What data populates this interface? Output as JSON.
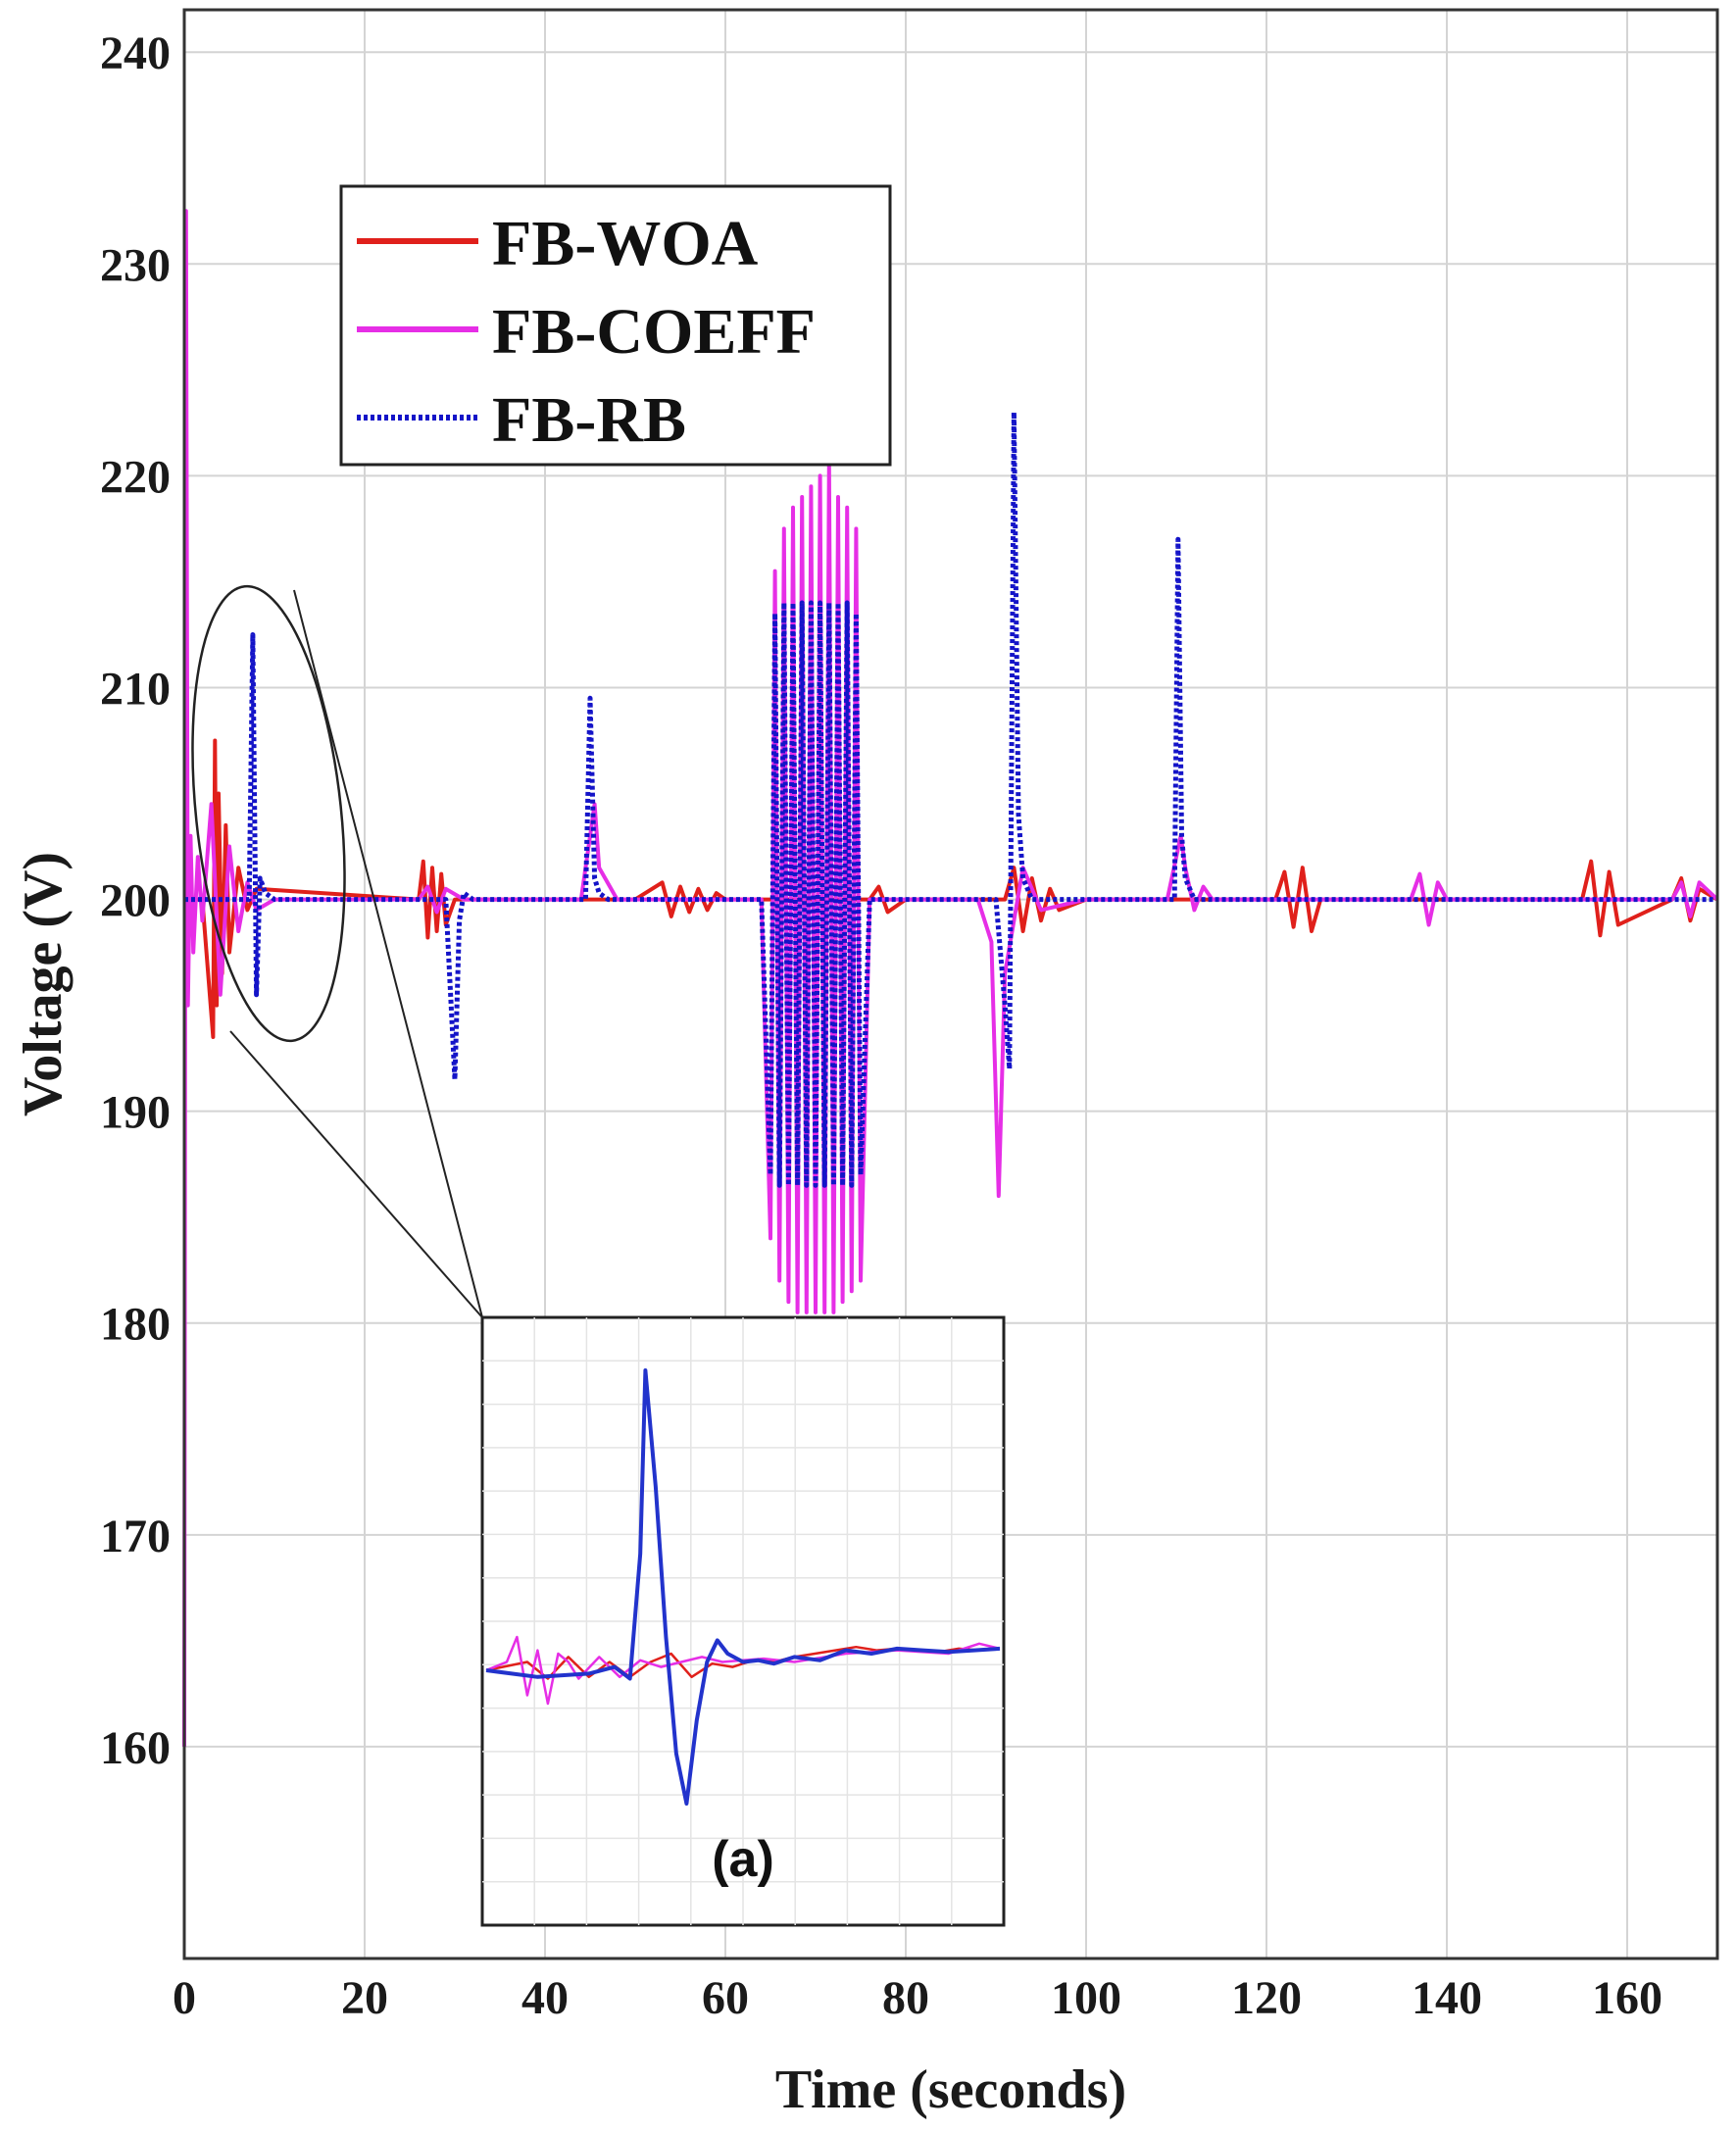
{
  "chart_data": {
    "type": "line",
    "xlabel": "Time (seconds)",
    "ylabel": "Voltage (V)",
    "xlim": [
      0,
      170
    ],
    "ylim": [
      150,
      242
    ],
    "xticks": [
      0,
      20,
      40,
      60,
      80,
      100,
      120,
      140,
      160
    ],
    "yticks": [
      160,
      170,
      180,
      190,
      200,
      210,
      220,
      230,
      240
    ],
    "grid": true,
    "legend_position": "top-left",
    "series": [
      {
        "name": "FB-WOA",
        "color": "#e0201b",
        "style": "solid",
        "x": [
          0,
          2,
          3.2,
          3.4,
          3.6,
          3.8,
          4.2,
          4.6,
          5,
          6,
          7,
          8,
          26,
          26.5,
          27,
          27.5,
          28,
          28.5,
          29,
          30,
          35,
          50,
          53,
          54,
          55,
          56,
          57,
          58,
          59,
          60,
          64,
          76,
          77,
          78,
          80,
          88,
          91,
          92,
          93,
          94,
          95,
          96,
          97,
          100,
          110,
          121,
          122,
          123,
          124,
          125,
          126,
          150,
          155,
          156,
          157,
          158,
          159,
          165,
          166,
          167,
          168,
          170
        ],
        "y": [
          200,
          200,
          193.5,
          207.5,
          195,
          205,
          196.5,
          203.5,
          197.5,
          201.5,
          199.5,
          200.5,
          200,
          201.8,
          198.2,
          201.5,
          198.5,
          201.2,
          198.8,
          200,
          200,
          200,
          200.8,
          199.2,
          200.6,
          199.4,
          200.5,
          199.5,
          200.3,
          200,
          200,
          200,
          200.6,
          199.4,
          200,
          200,
          200,
          201.5,
          198.5,
          201,
          199,
          200.5,
          199.5,
          200,
          200,
          200,
          201.3,
          198.7,
          201.5,
          198.5,
          200,
          200,
          200,
          201.8,
          198.3,
          201.3,
          198.8,
          200,
          201,
          199,
          200.5,
          200
        ]
      },
      {
        "name": "FB-COEFF",
        "color": "#e62ee6",
        "style": "solid",
        "x": [
          0,
          0.2,
          0.4,
          0.7,
          1,
          1.5,
          2,
          3,
          4,
          5,
          6,
          7,
          8,
          10,
          26,
          27,
          28,
          29,
          31,
          44,
          45.5,
          46,
          48,
          64,
          65,
          65.5,
          66,
          66.5,
          67,
          67.5,
          68,
          68.5,
          69,
          69.5,
          70,
          70.5,
          71,
          71.5,
          72,
          72.5,
          73,
          73.5,
          74,
          74.5,
          75,
          76,
          88,
          89.5,
          90.3,
          91,
          93,
          95,
          100,
          109,
          110.5,
          111,
          112,
          113,
          114,
          136,
          137,
          138,
          139,
          140,
          150,
          160,
          165,
          166,
          167,
          168,
          170
        ],
        "y": [
          160,
          232.5,
          195,
          203,
          197.5,
          202,
          199,
          204.5,
          195.5,
          202.5,
          198.5,
          200.8,
          199.5,
          200,
          200,
          200.6,
          199.4,
          200.5,
          200,
          200,
          204.5,
          201.5,
          200,
          200,
          184,
          215.5,
          182,
          217.5,
          181,
          218.5,
          180.5,
          219,
          180.5,
          219.5,
          180.5,
          220,
          180.5,
          220.5,
          180.5,
          219,
          181,
          218.5,
          181.5,
          217.5,
          182,
          200,
          200,
          198,
          186,
          196.5,
          201.5,
          199.5,
          200,
          200,
          203,
          201.5,
          199.5,
          200.6,
          200,
          200,
          201.2,
          198.8,
          200.8,
          200,
          200,
          200,
          200,
          200.8,
          199.2,
          200.8,
          200
        ]
      },
      {
        "name": "FB-RB",
        "color": "#1414c8",
        "style": "dotted",
        "x": [
          0,
          7.2,
          7.6,
          8,
          8.4,
          9,
          10,
          29,
          30,
          30.5,
          31,
          32,
          44.5,
          45,
          45.5,
          46,
          47,
          64,
          65,
          65.5,
          66,
          66.5,
          67,
          67.5,
          68,
          68.5,
          69,
          69.5,
          70,
          70.5,
          71,
          71.5,
          72,
          72.5,
          73,
          73.5,
          74,
          74.5,
          75,
          76,
          90,
          91,
          91.5,
          92,
          92.5,
          93,
          94,
          109,
          109.8,
          110.2,
          110.6,
          111,
          112,
          170
        ],
        "y": [
          200,
          200,
          212.5,
          195.5,
          201,
          200.3,
          200,
          200,
          191.5,
          199,
          200.3,
          200,
          200,
          209.5,
          201,
          200.3,
          200,
          200,
          187,
          213.5,
          186.5,
          214,
          186.5,
          214,
          186.5,
          214,
          186.5,
          214,
          186.5,
          214,
          186.5,
          214,
          186.5,
          214,
          186.5,
          214,
          186.5,
          213.5,
          187,
          200,
          200,
          195,
          192,
          223,
          204,
          201,
          200,
          200,
          200,
          217,
          203,
          201,
          200,
          200
        ]
      }
    ]
  },
  "inset": {
    "label": "(a)",
    "zoom_of": "0–16 s",
    "series": [
      {
        "name": "FB-WOA",
        "color": "#e0201b",
        "x": [
          0,
          0.08,
          0.12,
          0.16,
          0.2,
          0.24,
          0.28,
          0.32,
          0.36,
          0.4,
          0.44,
          0.48,
          0.52,
          0.56,
          0.6,
          0.64,
          0.68,
          0.72,
          0.76,
          0.8,
          0.84,
          0.88,
          0.92,
          0.96,
          1
        ],
        "y": [
          0,
          0.05,
          -0.05,
          0.08,
          -0.04,
          0.05,
          -0.04,
          0.05,
          0.1,
          -0.04,
          0.04,
          0.02,
          0.06,
          0.05,
          0.08,
          0.1,
          0.12,
          0.14,
          0.12,
          0.13,
          0.12,
          0.11,
          0.13,
          0.12,
          0.13
        ]
      },
      {
        "name": "FB-COEFF",
        "color": "#e62ee6",
        "x": [
          0,
          0.04,
          0.06,
          0.08,
          0.1,
          0.12,
          0.14,
          0.16,
          0.18,
          0.22,
          0.26,
          0.3,
          0.34,
          0.38,
          0.42,
          0.46,
          0.5,
          0.54,
          0.6,
          0.7,
          0.8,
          0.9,
          0.96,
          1
        ],
        "y": [
          0,
          0.05,
          0.2,
          -0.15,
          0.12,
          -0.2,
          0.1,
          0.05,
          -0.05,
          0.08,
          -0.04,
          0.06,
          0.02,
          0.05,
          0.08,
          0.05,
          0.06,
          0.07,
          0.05,
          0.1,
          0.12,
          0.1,
          0.16,
          0.13
        ]
      },
      {
        "name": "FB-RB",
        "color": "#2233cc",
        "x": [
          0,
          0.1,
          0.2,
          0.25,
          0.28,
          0.3,
          0.31,
          0.33,
          0.35,
          0.37,
          0.39,
          0.41,
          0.43,
          0.45,
          0.47,
          0.5,
          0.53,
          0.56,
          0.6,
          0.65,
          0.7,
          0.75,
          0.8,
          0.85,
          0.9,
          0.95,
          1
        ],
        "y": [
          0,
          -0.04,
          -0.02,
          0.02,
          -0.05,
          0.7,
          1.8,
          1.1,
          0.2,
          -0.5,
          -0.8,
          -0.3,
          0.05,
          0.18,
          0.1,
          0.05,
          0.06,
          0.04,
          0.08,
          0.06,
          0.12,
          0.1,
          0.13,
          0.12,
          0.11,
          0.12,
          0.13
        ]
      }
    ]
  }
}
